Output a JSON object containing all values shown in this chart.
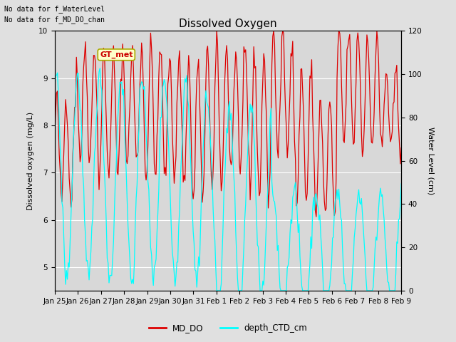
{
  "title": "Dissolved Oxygen",
  "ylabel_left": "Dissolved oxygen (mg/L)",
  "ylabel_right": "Water Level (cm)",
  "text_no_data1": "No data for f_WaterLevel",
  "text_no_data2": "No data for f_MD_DO_chan",
  "legend_label1": "MD_DO",
  "legend_label2": "depth_CTD_cm",
  "legend_box_label": "GT_met",
  "ylim_left": [
    4.5,
    10.0
  ],
  "ylim_right": [
    0,
    120
  ],
  "xtick_labels": [
    "Jan 25",
    "Jan 26",
    "Jan 27",
    "Jan 28",
    "Jan 29",
    "Jan 30",
    "Jan 31",
    "Feb 1",
    "Feb 2",
    "Feb 3",
    "Feb 4",
    "Feb 5",
    "Feb 6",
    "Feb 7",
    "Feb 8",
    "Feb 9"
  ],
  "fig_bg_color": "#e0e0e0",
  "plot_bg_color": "#d8d8d8",
  "line_color_DO": "#dd0000",
  "line_color_depth": "#00ffff",
  "grid_color": "#ffffff",
  "title_fontsize": 11,
  "axis_label_fontsize": 8,
  "tick_fontsize": 7.5
}
